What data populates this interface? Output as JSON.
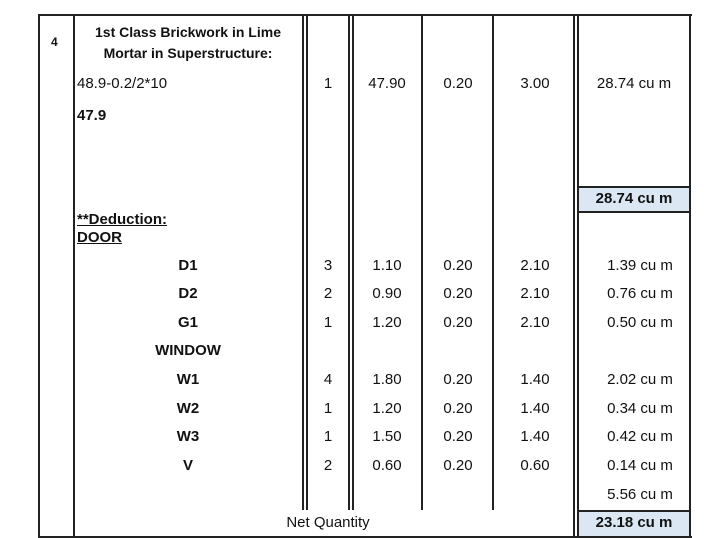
{
  "item_no": "4",
  "title_lines": [
    "1st Class Brickwork in Lime",
    "Mortar in Superstructure:"
  ],
  "main": {
    "calc": "48.9-0.2/2*10",
    "nos": "1",
    "length": "47.90",
    "breadth": "0.20",
    "height": "3.00",
    "quantity": "28.74 cu m"
  },
  "main_result": "47.9",
  "subtotal": "28.74 cu m",
  "deduction_heading": "**Deduction:",
  "door_heading": "DOOR",
  "door_rows": [
    {
      "label": "D1",
      "nos": "3",
      "length": "1.10",
      "breadth": "0.20",
      "height": "2.10",
      "quantity": "1.39 cu m"
    },
    {
      "label": "D2",
      "nos": "2",
      "length": "0.90",
      "breadth": "0.20",
      "height": "2.10",
      "quantity": "0.76 cu m"
    },
    {
      "label": "G1",
      "nos": "1",
      "length": "1.20",
      "breadth": "0.20",
      "height": "2.10",
      "quantity": "0.50 cu m"
    }
  ],
  "window_heading": "WINDOW",
  "window_rows": [
    {
      "label": "W1",
      "nos": "4",
      "length": "1.80",
      "breadth": "0.20",
      "height": "1.40",
      "quantity": "2.02 cu m"
    },
    {
      "label": "W2",
      "nos": "1",
      "length": "1.20",
      "breadth": "0.20",
      "height": "1.40",
      "quantity": "0.34 cu m"
    },
    {
      "label": "W3",
      "nos": "1",
      "length": "1.50",
      "breadth": "0.20",
      "height": "1.40",
      "quantity": "0.42 cu m"
    },
    {
      "label": "V",
      "nos": "2",
      "length": "0.60",
      "breadth": "0.20",
      "height": "0.60",
      "quantity": "0.14 cu m"
    }
  ],
  "deduction_total": "5.56 cu m",
  "net_label": "Net Quantity",
  "net_quantity": "23.18 cu m"
}
